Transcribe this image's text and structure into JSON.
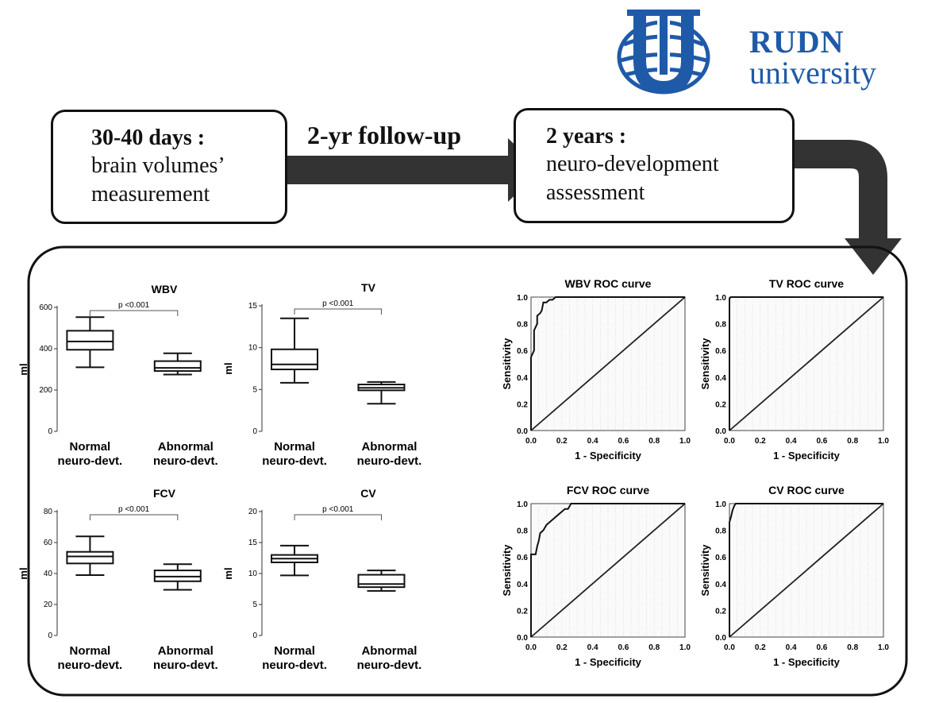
{
  "logo": {
    "line1": "RUDN",
    "line2": "university",
    "color": "#1f5aa8"
  },
  "flow": {
    "step1": {
      "title": "30-40 days :",
      "line1": "brain volumes’",
      "line2": "measurement"
    },
    "arrow_label": "2-yr follow-up",
    "step2": {
      "title": "2 years :",
      "line1": "neuro-development",
      "line2": "assessment"
    }
  },
  "chart_data": [
    {
      "type": "box",
      "title": "WBV",
      "ylabel": "ml",
      "ylim": [
        0,
        600
      ],
      "yticks": [
        "0",
        "200",
        "400",
        "600"
      ],
      "categories": [
        "Normal neuro-devt.",
        "Abnormal neuro-devt."
      ],
      "annotation": "p <0.001",
      "boxes": [
        {
          "min": 310,
          "q1": 395,
          "median": 435,
          "q3": 487,
          "max": 553
        },
        {
          "min": 275,
          "q1": 292,
          "median": 307,
          "q3": 340,
          "max": 378
        }
      ]
    },
    {
      "type": "box",
      "title": "TV",
      "ylabel": "ml",
      "ylim": [
        0,
        15
      ],
      "yticks": [
        "0",
        "5",
        "10",
        "15"
      ],
      "categories": [
        "Normal neuro-devt.",
        "Abnormal neuro-devt."
      ],
      "annotation": "p <0.001",
      "boxes": [
        {
          "min": 5.8,
          "q1": 7.4,
          "median": 8.0,
          "q3": 9.8,
          "max": 13.5
        },
        {
          "min": 3.3,
          "q1": 4.9,
          "median": 5.2,
          "q3": 5.6,
          "max": 5.9
        }
      ]
    },
    {
      "type": "box",
      "title": "FCV",
      "ylabel": "ml",
      "ylim": [
        0,
        80
      ],
      "yticks": [
        "0",
        "20",
        "40",
        "60",
        "80"
      ],
      "categories": [
        "Normal neuro-devt.",
        "Abnormal neuro-devt."
      ],
      "annotation": "p <0.001",
      "boxes": [
        {
          "min": 39,
          "q1": 46.5,
          "median": 51,
          "q3": 54,
          "max": 64
        },
        {
          "min": 29.5,
          "q1": 35,
          "median": 38,
          "q3": 42,
          "max": 46
        }
      ]
    },
    {
      "type": "box",
      "title": "CV",
      "ylabel": "ml",
      "ylim": [
        0,
        20
      ],
      "yticks": [
        "0",
        "5",
        "10",
        "15",
        "20"
      ],
      "categories": [
        "Normal neuro-devt.",
        "Abnormal neuro-devt."
      ],
      "annotation": "p <0.001",
      "boxes": [
        {
          "min": 9.7,
          "q1": 11.8,
          "median": 12.4,
          "q3": 13.0,
          "max": 14.5
        },
        {
          "min": 7.2,
          "q1": 7.8,
          "median": 8.3,
          "q3": 9.8,
          "max": 10.5
        }
      ]
    },
    {
      "type": "line",
      "title": "WBV ROC curve",
      "xlabel": "1 - Specificity",
      "ylabel": "Sensitivity",
      "xlim": [
        0,
        1
      ],
      "ylim": [
        0,
        1
      ],
      "xticks": [
        "0.0",
        "0.2",
        "0.4",
        "0.6",
        "0.8",
        "1.0"
      ],
      "yticks": [
        "0.0",
        "0.2",
        "0.4",
        "0.6",
        "0.8",
        "1.0"
      ],
      "curve": {
        "x": [
          0,
          0,
          0.02,
          0.02,
          0.04,
          0.04,
          0.06,
          0.07,
          0.08,
          0.1,
          0.12,
          0.14,
          0.16,
          0.18,
          1.0
        ],
        "y": [
          0,
          0.55,
          0.6,
          0.75,
          0.8,
          0.86,
          0.88,
          0.9,
          0.96,
          0.96,
          0.98,
          0.98,
          1.0,
          1.0,
          1.0
        ]
      },
      "reference": {
        "x": [
          0,
          1
        ],
        "y": [
          0,
          1
        ]
      }
    },
    {
      "type": "line",
      "title": "TV ROC curve",
      "xlabel": "1 - Specificity",
      "ylabel": "Sensitivity",
      "xlim": [
        0,
        1
      ],
      "ylim": [
        0,
        1
      ],
      "xticks": [
        "0.0",
        "0.2",
        "0.4",
        "0.6",
        "0.8",
        "1.0"
      ],
      "yticks": [
        "0.0",
        "0.2",
        "0.4",
        "0.6",
        "0.8",
        "1.0"
      ],
      "curve": {
        "x": [
          0,
          0,
          0.01,
          1.0
        ],
        "y": [
          0,
          0.99,
          1.0,
          1.0
        ]
      },
      "reference": {
        "x": [
          0,
          1
        ],
        "y": [
          0,
          1
        ]
      }
    },
    {
      "type": "line",
      "title": "FCV ROC curve",
      "xlabel": "1 - Specificity",
      "ylabel": "Sensitivity",
      "xlim": [
        0,
        1
      ],
      "ylim": [
        0,
        1
      ],
      "xticks": [
        "0.0",
        "0.2",
        "0.4",
        "0.6",
        "0.8",
        "1.0"
      ],
      "yticks": [
        "0.0",
        "0.2",
        "0.4",
        "0.6",
        "0.8",
        "1.0"
      ],
      "curve": {
        "x": [
          0,
          0,
          0.03,
          0.04,
          0.05,
          0.06,
          0.08,
          0.1,
          0.12,
          0.14,
          0.16,
          0.18,
          0.2,
          0.22,
          0.24,
          0.26,
          1.0
        ],
        "y": [
          0,
          0.62,
          0.62,
          0.68,
          0.72,
          0.78,
          0.8,
          0.84,
          0.86,
          0.88,
          0.9,
          0.92,
          0.94,
          0.96,
          0.96,
          1.0,
          1.0
        ]
      },
      "reference": {
        "x": [
          0,
          1
        ],
        "y": [
          0,
          1
        ]
      }
    },
    {
      "type": "line",
      "title": "CV ROC curve",
      "xlabel": "1 - Specificity",
      "ylabel": "Sensitivity",
      "xlim": [
        0,
        1
      ],
      "ylim": [
        0,
        1
      ],
      "xticks": [
        "0.0",
        "0.2",
        "0.4",
        "0.6",
        "0.8",
        "1.0"
      ],
      "yticks": [
        "0.0",
        "0.2",
        "0.4",
        "0.6",
        "0.8",
        "1.0"
      ],
      "curve": {
        "x": [
          0,
          0,
          0.01,
          0.02,
          0.03,
          0.04,
          1.0
        ],
        "y": [
          0,
          0.86,
          0.9,
          0.95,
          0.98,
          1.0,
          1.0
        ]
      },
      "reference": {
        "x": [
          0,
          1
        ],
        "y": [
          0,
          1
        ]
      }
    }
  ]
}
